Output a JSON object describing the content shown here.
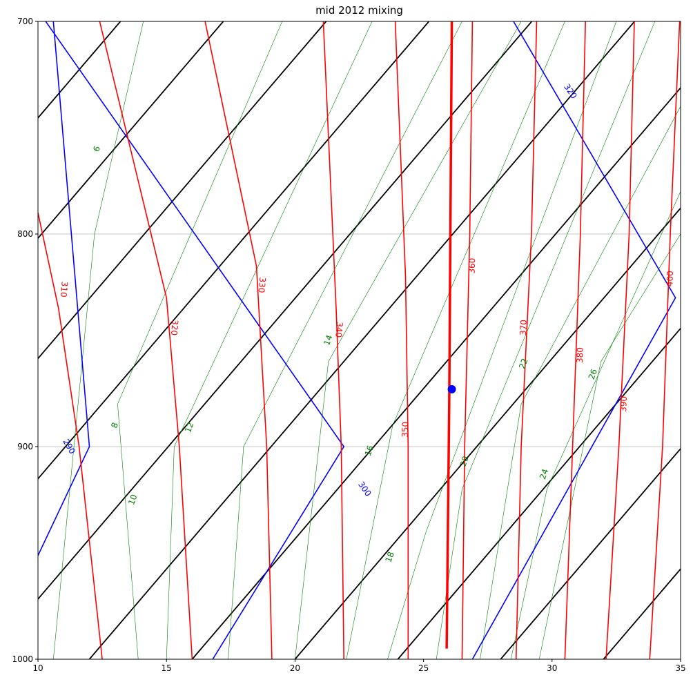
{
  "chart_data": {
    "type": "line",
    "title": "mid 2012 mixing",
    "xlabel": "",
    "ylabel": "",
    "xlim": [
      10,
      35
    ],
    "ylim": [
      1000,
      700
    ],
    "x_ticks": [
      "10",
      "15",
      "20",
      "25",
      "30",
      "35"
    ],
    "y_ticks": [
      "700",
      "800",
      "900",
      "1000"
    ],
    "y_grid_lines": [
      800,
      900
    ],
    "colors": {
      "isotherm": "#000000",
      "dry_adiabat": "#0000ff",
      "moist_adiabat": "#ff0000",
      "mixing_ratio": "#008000",
      "highlight": "#ff0000",
      "point": "#0000ff"
    },
    "isotherm_skew_deg_per_hPa": 0.0707,
    "isotherms_base_temps_at_1000hPa": [
      -40,
      -36,
      -32,
      -28,
      -24,
      -20,
      -16,
      -12,
      -8,
      -4,
      0,
      4,
      8,
      12,
      16,
      20,
      24,
      28,
      32,
      36
    ],
    "dry_adiabat_labels": [
      "290",
      "300",
      "320"
    ],
    "dry_adiabats": [
      {
        "label": "290",
        "points": [
          [
            8.1,
            1000
          ],
          [
            12.0,
            900
          ],
          [
            10.6,
            700
          ]
        ]
      },
      {
        "label": "300",
        "points": [
          [
            16.8,
            1000
          ],
          [
            21.9,
            900
          ],
          [
            10.3,
            700
          ]
        ]
      },
      {
        "label": "320",
        "points": [
          [
            26.9,
            1000
          ],
          [
            34.8,
            830
          ],
          [
            28.5,
            700
          ]
        ]
      }
    ],
    "moist_adiabat_labels": [
      "310",
      "320",
      "330",
      "340",
      "350",
      "360",
      "370",
      "380",
      "390",
      "400"
    ],
    "moist_adiabats": [
      {
        "label": "310",
        "points": [
          [
            12.5,
            1000
          ],
          [
            11.6,
            900
          ],
          [
            10.8,
            835
          ],
          [
            10.0,
            790
          ]
        ]
      },
      {
        "label": "320",
        "points": [
          [
            16.0,
            1000
          ],
          [
            15.5,
            900
          ],
          [
            15.0,
            830
          ],
          [
            12.4,
            700
          ]
        ]
      },
      {
        "label": "330",
        "points": [
          [
            19.1,
            1000
          ],
          [
            18.9,
            900
          ],
          [
            18.5,
            815
          ],
          [
            16.5,
            700
          ]
        ]
      },
      {
        "label": "340",
        "points": [
          [
            21.9,
            1000
          ],
          [
            21.8,
            900
          ],
          [
            21.6,
            835
          ],
          [
            21.1,
            700
          ]
        ]
      },
      {
        "label": "350",
        "points": [
          [
            24.4,
            1000
          ],
          [
            24.4,
            900
          ],
          [
            24.3,
            820
          ],
          [
            23.9,
            700
          ]
        ]
      },
      {
        "label": "360",
        "points": [
          [
            26.5,
            1000
          ],
          [
            26.6,
            900
          ],
          [
            26.8,
            800
          ],
          [
            26.9,
            700
          ]
        ]
      },
      {
        "label": "370",
        "points": [
          [
            28.6,
            1000
          ],
          [
            28.8,
            900
          ],
          [
            29.2,
            800
          ],
          [
            29.4,
            700
          ]
        ]
      },
      {
        "label": "380",
        "points": [
          [
            30.5,
            1000
          ],
          [
            30.8,
            900
          ],
          [
            31.1,
            800
          ],
          [
            31.3,
            700
          ]
        ]
      },
      {
        "label": "390",
        "points": [
          [
            32.1,
            1000
          ],
          [
            32.6,
            900
          ],
          [
            33.0,
            800
          ],
          [
            33.2,
            700
          ]
        ]
      },
      {
        "label": "400",
        "points": [
          [
            33.8,
            1000
          ],
          [
            34.3,
            900
          ],
          [
            34.6,
            800
          ],
          [
            35.0,
            690
          ]
        ]
      }
    ],
    "mixing_ratio_labels": [
      "6",
      "8",
      "10",
      "12",
      "14",
      "16",
      "18",
      "20",
      "22",
      "24",
      "26"
    ],
    "mixing_ratios": [
      {
        "label": "6",
        "points": [
          [
            10.6,
            1000
          ],
          [
            12.2,
            800
          ],
          [
            14.1,
            700
          ]
        ]
      },
      {
        "label": "8",
        "points": [
          [
            13.9,
            1000
          ],
          [
            13.1,
            880
          ],
          [
            19.5,
            700
          ]
        ]
      },
      {
        "label": "10",
        "points": [
          [
            15.0,
            1000
          ],
          [
            15.3,
            900
          ],
          [
            23.0,
            700
          ]
        ]
      },
      {
        "label": "12",
        "points": [
          [
            17.4,
            1000
          ],
          [
            18.0,
            900
          ],
          [
            26.5,
            700
          ]
        ]
      },
      {
        "label": "14",
        "points": [
          [
            20.0,
            1000
          ],
          [
            21.3,
            860
          ],
          [
            28.8,
            700
          ]
        ]
      },
      {
        "label": "16",
        "points": [
          [
            22.0,
            1000
          ],
          [
            23.8,
            890
          ],
          [
            30.5,
            700
          ]
        ]
      },
      {
        "label": "18",
        "points": [
          [
            23.6,
            1000
          ],
          [
            25.1,
            940
          ],
          [
            32.5,
            700
          ]
        ]
      },
      {
        "label": "20",
        "points": [
          [
            25.5,
            1000
          ],
          [
            26.5,
            920
          ],
          [
            34.0,
            700
          ]
        ]
      },
      {
        "label": "22",
        "points": [
          [
            27.2,
            1000
          ],
          [
            28.8,
            880
          ],
          [
            35.0,
            740
          ]
        ]
      },
      {
        "label": "24",
        "points": [
          [
            28.4,
            1000
          ],
          [
            29.8,
            920
          ],
          [
            35.0,
            780
          ]
        ]
      },
      {
        "label": "26",
        "points": [
          [
            29.5,
            1000
          ],
          [
            31.9,
            860
          ],
          [
            35.0,
            800
          ]
        ]
      }
    ],
    "highlight_line": {
      "points": [
        [
          25.9,
          995
        ],
        [
          26.0,
          880
        ],
        [
          26.1,
          700
        ]
      ]
    },
    "point": {
      "x": 26.1,
      "y": 873
    }
  }
}
